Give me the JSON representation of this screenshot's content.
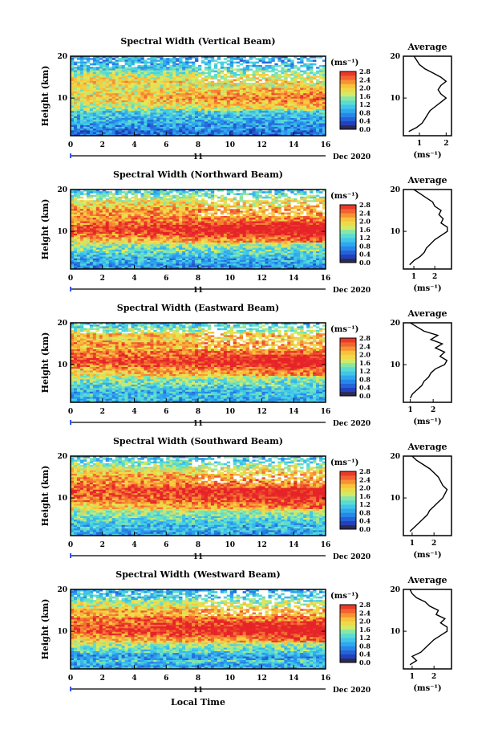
{
  "figure": {
    "xlabel": "Local Time",
    "date_label": "Dec 2020",
    "day_label": "11",
    "colorbar_unit": "(ms⁻¹)",
    "colorbar_ticks": [
      "0.0",
      "0.4",
      "0.8",
      "1.2",
      "1.6",
      "2.0",
      "2.4",
      "2.8"
    ],
    "profile_title": "Average",
    "profile_xlabel": "(ms⁻¹)"
  },
  "chart_data": [
    {
      "type": "heatmap",
      "title": "Spectral Width (Vertical Beam)",
      "ylabel": "Height (km)",
      "xlabel": "Local Time",
      "xlim": [
        0,
        16
      ],
      "xticks": [
        0,
        2,
        4,
        6,
        8,
        10,
        12,
        14,
        16
      ],
      "ylim": [
        1,
        20
      ],
      "yticks": [
        10,
        20
      ],
      "colorbar": {
        "label": "(ms⁻¹)",
        "range": [
          0.0,
          2.8
        ],
        "ticks": [
          0.0,
          0.4,
          0.8,
          1.2,
          1.6,
          2.0,
          2.4,
          2.8
        ]
      },
      "average_profile": {
        "title": "Average",
        "xlabel": "(ms⁻¹)",
        "xticks": [
          1,
          2
        ],
        "xlim": [
          0.4,
          2.2
        ],
        "yticks": [
          10,
          20
        ],
        "ylim": [
          1,
          20
        ],
        "height": [
          2,
          3,
          4,
          5,
          6,
          7,
          8,
          9,
          10,
          11,
          12,
          13,
          14,
          15,
          16,
          17,
          18,
          19,
          20
        ],
        "width": [
          0.6,
          0.9,
          1.1,
          1.2,
          1.3,
          1.4,
          1.6,
          1.8,
          2.0,
          1.8,
          1.7,
          1.8,
          2.0,
          1.8,
          1.5,
          1.2,
          1.0,
          0.9,
          0.8
        ]
      }
    },
    {
      "type": "heatmap",
      "title": "Spectral Width (Northward Beam)",
      "ylabel": "Height (km)",
      "xlabel": "Local Time",
      "xlim": [
        0,
        16
      ],
      "xticks": [
        0,
        2,
        4,
        6,
        8,
        10,
        12,
        14,
        16
      ],
      "ylim": [
        1,
        20
      ],
      "yticks": [
        10,
        20
      ],
      "colorbar": {
        "label": "(ms⁻¹)",
        "range": [
          0.0,
          2.8
        ],
        "ticks": [
          0.0,
          0.4,
          0.8,
          1.2,
          1.6,
          2.0,
          2.4,
          2.8
        ]
      },
      "average_profile": {
        "title": "Average",
        "xlabel": "(ms⁻¹)",
        "xticks": [
          1,
          2
        ],
        "xlim": [
          0.5,
          2.8
        ],
        "yticks": [
          10,
          20
        ],
        "ylim": [
          1,
          20
        ],
        "height": [
          2,
          3,
          4,
          5,
          6,
          7,
          8,
          9,
          10,
          11,
          12,
          13,
          14,
          15,
          16,
          17,
          18,
          19,
          20
        ],
        "width": [
          0.8,
          1.0,
          1.3,
          1.5,
          1.6,
          1.8,
          2.0,
          2.3,
          2.6,
          2.6,
          2.3,
          2.4,
          2.2,
          2.3,
          2.0,
          1.9,
          1.6,
          1.3,
          1.0
        ]
      }
    },
    {
      "type": "heatmap",
      "title": "Spectral Width (Eastward Beam)",
      "ylabel": "Height (km)",
      "xlabel": "Local Time",
      "xlim": [
        0,
        16
      ],
      "xticks": [
        0,
        2,
        4,
        6,
        8,
        10,
        12,
        14,
        16
      ],
      "ylim": [
        1,
        20
      ],
      "yticks": [
        10,
        20
      ],
      "colorbar": {
        "label": "(ms⁻¹)",
        "range": [
          0.0,
          2.8
        ],
        "ticks": [
          0.0,
          0.4,
          0.8,
          1.2,
          1.6,
          2.0,
          2.4,
          2.8
        ]
      },
      "average_profile": {
        "title": "Average",
        "xlabel": "(ms⁻¹)",
        "xticks": [
          1,
          2
        ],
        "xlim": [
          0.7,
          2.8
        ],
        "yticks": [
          10,
          20
        ],
        "ylim": [
          1,
          20
        ],
        "height": [
          2,
          3,
          4,
          5,
          6,
          7,
          8,
          9,
          10,
          11,
          12,
          13,
          14,
          15,
          16,
          17,
          18,
          19,
          20
        ],
        "width": [
          1.0,
          1.1,
          1.3,
          1.5,
          1.6,
          1.8,
          1.9,
          2.1,
          2.5,
          2.6,
          2.3,
          2.5,
          2.1,
          2.4,
          1.9,
          2.2,
          1.6,
          1.3,
          1.0
        ]
      }
    },
    {
      "type": "heatmap",
      "title": "Spectral Width (Southward Beam)",
      "ylabel": "Height (km)",
      "xlabel": "Local Time",
      "xlim": [
        0,
        16
      ],
      "xticks": [
        0,
        2,
        4,
        6,
        8,
        10,
        12,
        14,
        16
      ],
      "ylim": [
        1,
        20
      ],
      "yticks": [
        10,
        20
      ],
      "colorbar": {
        "label": "(ms⁻¹)",
        "range": [
          0.0,
          2.8
        ],
        "ticks": [
          0.0,
          0.4,
          0.8,
          1.2,
          1.6,
          2.0,
          2.4,
          2.8
        ]
      },
      "average_profile": {
        "title": "Average",
        "xlabel": "(ms⁻¹)",
        "xticks": [
          1,
          2
        ],
        "xlim": [
          0.6,
          2.8
        ],
        "yticks": [
          10,
          20
        ],
        "ylim": [
          1,
          20
        ],
        "height": [
          2,
          3,
          4,
          5,
          6,
          7,
          8,
          9,
          10,
          11,
          12,
          13,
          14,
          15,
          16,
          17,
          18,
          19,
          20
        ],
        "width": [
          0.9,
          1.1,
          1.3,
          1.5,
          1.7,
          1.8,
          2.0,
          2.2,
          2.4,
          2.5,
          2.6,
          2.4,
          2.3,
          2.2,
          2.0,
          1.8,
          1.5,
          1.2,
          1.0
        ]
      }
    },
    {
      "type": "heatmap",
      "title": "Spectral Width (Westward Beam)",
      "ylabel": "Height (km)",
      "xlabel": "Local Time",
      "xlim": [
        0,
        16
      ],
      "xticks": [
        0,
        2,
        4,
        6,
        8,
        10,
        12,
        14,
        16
      ],
      "ylim": [
        1,
        20
      ],
      "yticks": [
        10,
        20
      ],
      "colorbar": {
        "label": "(ms⁻¹)",
        "range": [
          0.0,
          2.8
        ],
        "ticks": [
          0.0,
          0.4,
          0.8,
          1.2,
          1.6,
          2.0,
          2.4,
          2.8
        ]
      },
      "average_profile": {
        "title": "Average",
        "xlabel": "(ms⁻¹)",
        "xticks": [
          1,
          2
        ],
        "xlim": [
          0.6,
          2.8
        ],
        "yticks": [
          10,
          20
        ],
        "ylim": [
          1,
          20
        ],
        "height": [
          2,
          3,
          4,
          5,
          6,
          7,
          8,
          9,
          10,
          11,
          12,
          13,
          14,
          15,
          16,
          17,
          18,
          19,
          20
        ],
        "width": [
          0.9,
          1.2,
          1.0,
          1.4,
          1.6,
          1.8,
          2.0,
          2.3,
          2.6,
          2.6,
          2.3,
          2.5,
          2.1,
          2.2,
          1.8,
          1.6,
          1.2,
          1.0,
          0.9
        ]
      }
    }
  ]
}
